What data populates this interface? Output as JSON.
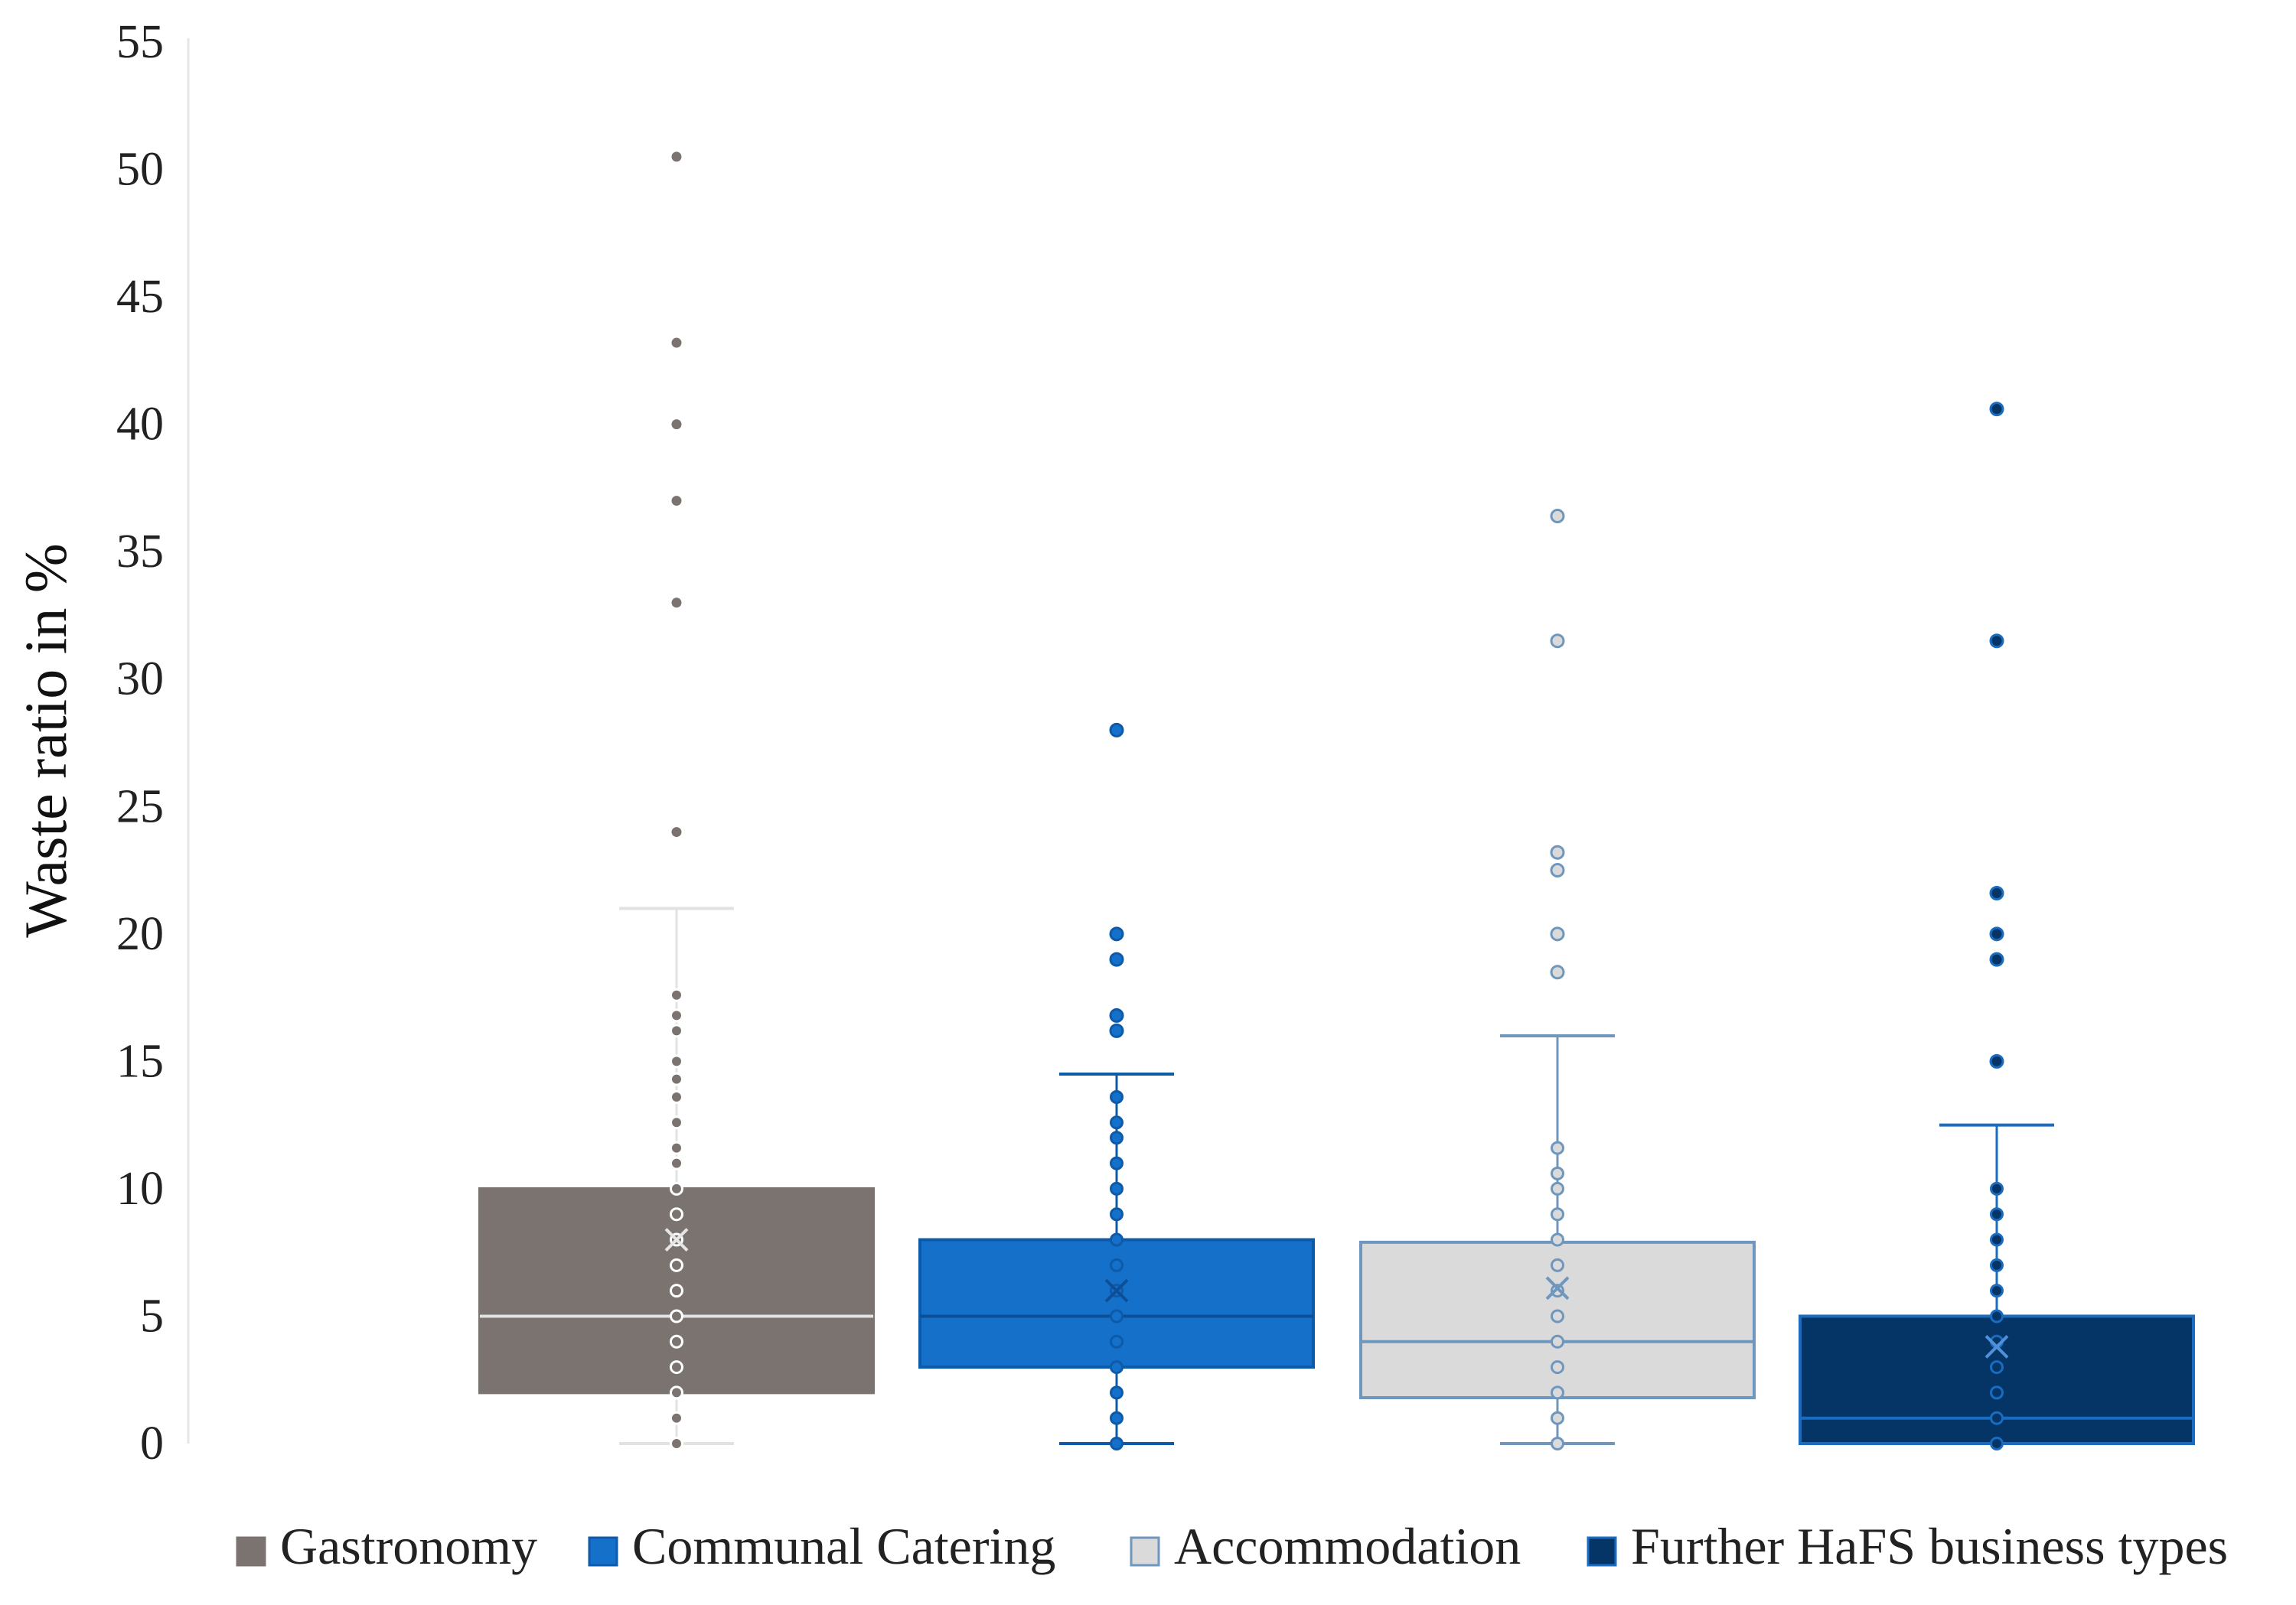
{
  "chart_data": {
    "type": "boxplot",
    "title": "",
    "xlabel": "",
    "ylabel": "Waste ratio in %",
    "ylim": [
      0,
      55
    ],
    "yticks": [
      0,
      5,
      10,
      15,
      20,
      25,
      30,
      35,
      40,
      45,
      50,
      55
    ],
    "grid": false,
    "legend_position": "bottom",
    "series": [
      {
        "name": "Gastronomy",
        "color": "#7a7370",
        "edge": "#7a7370",
        "line": "#e2e2e2",
        "point_fill": "#7a7370",
        "point_stroke": "#ffffff",
        "whisker_low": 0,
        "q1": 2,
        "median": 5,
        "q3": 10,
        "whisker_high": 21,
        "mean": 8,
        "outliers": [
          24,
          33,
          37,
          40,
          43.2,
          50.5
        ],
        "points": [
          0,
          1,
          2,
          3,
          4,
          5,
          6,
          7,
          8,
          9,
          10,
          11,
          11.6,
          12.6,
          13.6,
          14.3,
          15,
          16.2,
          16.8,
          17.6
        ]
      },
      {
        "name": "Communal Catering",
        "color": "#1470c8",
        "edge": "#0d5aa8",
        "line": "#0d4f96",
        "point_fill": "#1470c8",
        "point_stroke": "#0d5aa8",
        "whisker_low": 0,
        "q1": 3,
        "median": 5,
        "q3": 8,
        "whisker_high": 14.5,
        "mean": 6,
        "outliers": [
          16.2,
          16.8,
          19,
          20,
          28
        ],
        "points": [
          0,
          1,
          2,
          3,
          4,
          5,
          6,
          7,
          8,
          9,
          10,
          11,
          12,
          12.6,
          13.6
        ]
      },
      {
        "name": "Accommodation",
        "color": "#dadada",
        "edge": "#6f97bd",
        "line": "#6f97bd",
        "point_fill": "#dadada",
        "point_stroke": "#6f97bd",
        "whisker_low": 0,
        "q1": 1.8,
        "median": 4,
        "q3": 7.9,
        "whisker_high": 16,
        "mean": 6.1,
        "outliers": [
          18.5,
          20,
          22.5,
          23.2,
          31.5,
          36.4
        ],
        "points": [
          0,
          1,
          2,
          3,
          4,
          5,
          6,
          7,
          8,
          9,
          10,
          10.6,
          11.6
        ]
      },
      {
        "name": "Further HaFS business types",
        "color": "#053566",
        "edge": "#1a6cc0",
        "line": "#1a6cc0",
        "point_fill": "#053566",
        "point_stroke": "#1a6cc0",
        "whisker_low": 0,
        "q1": 0,
        "median": 1,
        "q3": 5,
        "whisker_high": 12.5,
        "mean": 3.8,
        "outliers": [
          15,
          19,
          20,
          21.6,
          31.5,
          40.6
        ],
        "points": [
          0,
          1,
          2,
          3,
          4,
          5,
          6,
          7,
          8,
          9,
          10
        ]
      }
    ]
  }
}
